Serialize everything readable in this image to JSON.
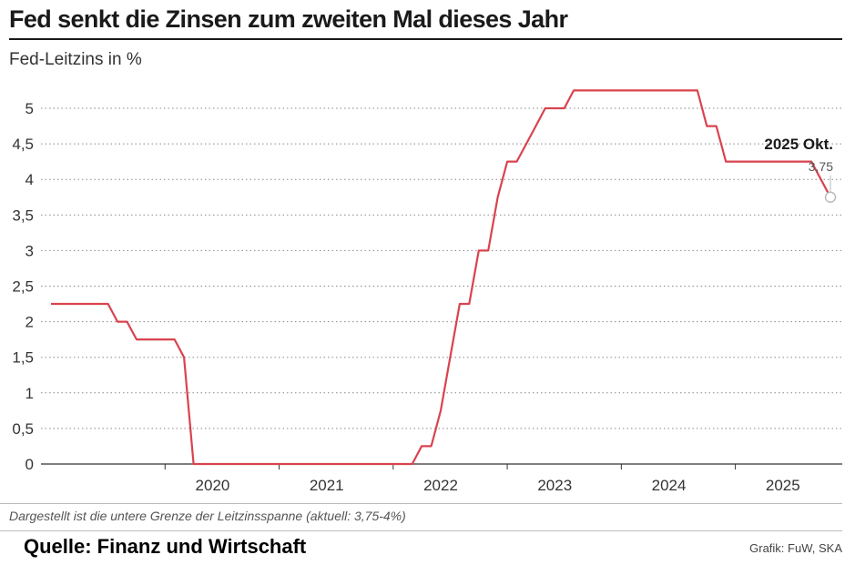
{
  "header": {
    "title": "Fed senkt die Zinsen zum zweiten Mal dieses Jahr",
    "subtitle": "Fed-Leitzins in %"
  },
  "footer": {
    "note": "Dargestellt ist die untere Grenze der Leitzinsspanne (aktuell: 3,75-4%)",
    "source": "Quelle: Finanz und Wirtschaft",
    "credit": "Grafik: FuW, SKA"
  },
  "colors": {
    "line": "#d9434e",
    "grid": "#888888",
    "text": "#333333"
  },
  "chart_data": {
    "type": "line",
    "title": "Fed senkt die Zinsen zum zweiten Mal dieses Jahr",
    "subtitle": "Fed-Leitzins in %",
    "xlabel": "",
    "ylabel": "",
    "xlim": [
      "2019-01",
      "2025-11"
    ],
    "ylim": [
      0,
      5.25
    ],
    "yticks": [
      0,
      0.5,
      1,
      1.5,
      2,
      2.5,
      3,
      3.5,
      4,
      4.5,
      5
    ],
    "ytick_labels": [
      "0",
      "0,5",
      "1",
      "1,5",
      "2",
      "2,5",
      "3",
      "3,5",
      "4",
      "4,5",
      "5"
    ],
    "xticks": [
      "2020",
      "2021",
      "2022",
      "2023",
      "2024",
      "2025"
    ],
    "grid": "horizontal dotted",
    "series": [
      {
        "x": [
          "2019-01",
          "2019-07",
          "2019-08",
          "2019-09",
          "2019-10",
          "2019-11",
          "2020-02",
          "2020-03",
          "2020-04",
          "2022-03",
          "2022-04",
          "2022-05",
          "2022-06",
          "2022-07",
          "2022-08",
          "2022-09",
          "2022-10",
          "2022-11",
          "2022-12",
          "2023-01",
          "2023-02",
          "2023-03",
          "2023-04",
          "2023-05",
          "2023-06",
          "2023-07",
          "2023-08",
          "2024-09",
          "2024-10",
          "2024-11",
          "2024-12",
          "2025-09",
          "2025-10",
          "2025-11"
        ],
        "values": [
          2.25,
          2.25,
          2.0,
          2.0,
          1.75,
          1.75,
          1.75,
          1.5,
          0.0,
          0.0,
          0.25,
          0.25,
          0.75,
          1.5,
          2.25,
          2.25,
          3.0,
          3.0,
          3.75,
          4.25,
          4.25,
          4.5,
          4.75,
          5.0,
          5.0,
          5.0,
          5.25,
          5.25,
          4.75,
          4.75,
          4.25,
          4.25,
          4.0,
          3.75
        ]
      }
    ],
    "annotation": {
      "label": "2025 Okt.",
      "value": "3,75"
    }
  }
}
